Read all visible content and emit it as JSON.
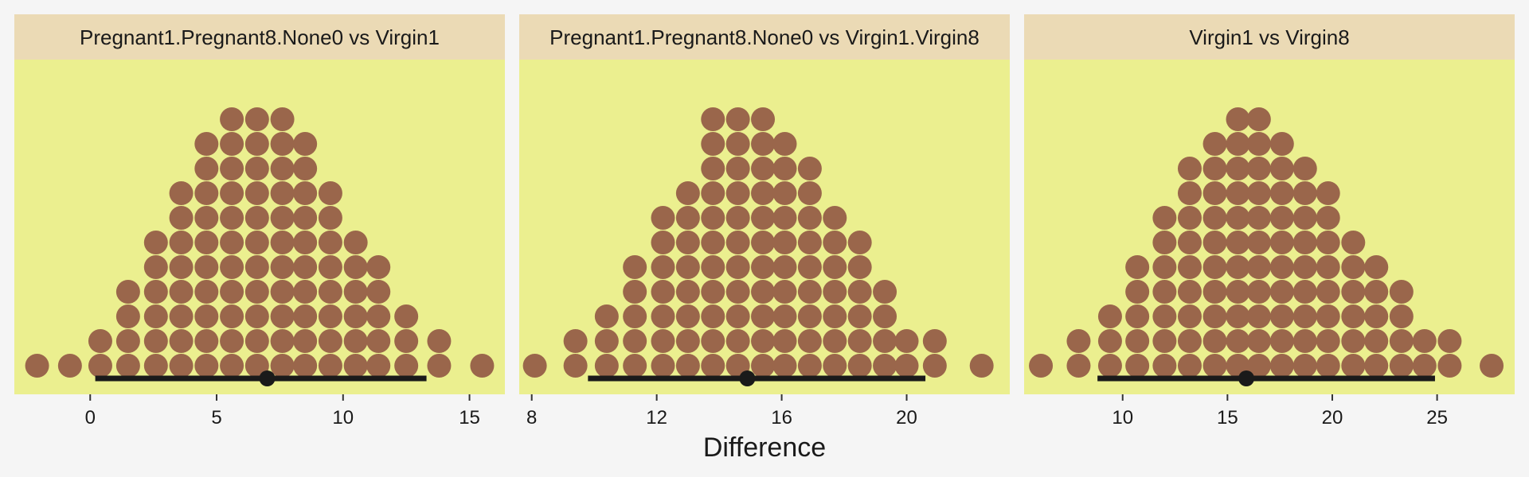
{
  "chart_data": {
    "type": "dotplot",
    "xlabel": "Difference",
    "colors": {
      "panel_background": "#ebef8f",
      "strip_background": "#ebdab5",
      "page_background": "#f5f5f5",
      "dot": "#9a664b",
      "interval": "#1a1a1a"
    },
    "panels": [
      {
        "title": "Pregnant1.Pregnant8.None0 vs Virgin1",
        "xlim": [
          -3,
          16.4
        ],
        "ticks": [
          0,
          5,
          10,
          15
        ],
        "interval": {
          "low": 0.2,
          "high": 13.3,
          "point": 7.0
        },
        "bins": [
          {
            "x": -2.1,
            "n": 1
          },
          {
            "x": -0.8,
            "n": 1
          },
          {
            "x": 0.4,
            "n": 2
          },
          {
            "x": 1.5,
            "n": 4
          },
          {
            "x": 2.6,
            "n": 6
          },
          {
            "x": 3.6,
            "n": 8
          },
          {
            "x": 4.6,
            "n": 10
          },
          {
            "x": 5.6,
            "n": 11
          },
          {
            "x": 6.6,
            "n": 11
          },
          {
            "x": 7.6,
            "n": 11
          },
          {
            "x": 8.5,
            "n": 10
          },
          {
            "x": 9.5,
            "n": 8
          },
          {
            "x": 10.5,
            "n": 6
          },
          {
            "x": 11.4,
            "n": 5
          },
          {
            "x": 12.5,
            "n": 3
          },
          {
            "x": 13.8,
            "n": 2
          },
          {
            "x": 15.5,
            "n": 1
          }
        ]
      },
      {
        "title": "Pregnant1.Pregnant8.None0 vs Virgin1.Virgin8",
        "xlim": [
          7.6,
          23.3
        ],
        "ticks": [
          8,
          12,
          16,
          20
        ],
        "interval": {
          "low": 9.8,
          "high": 20.6,
          "point": 14.9
        },
        "bins": [
          {
            "x": 8.1,
            "n": 1
          },
          {
            "x": 9.4,
            "n": 2
          },
          {
            "x": 10.4,
            "n": 3
          },
          {
            "x": 11.3,
            "n": 5
          },
          {
            "x": 12.2,
            "n": 7
          },
          {
            "x": 13.0,
            "n": 8
          },
          {
            "x": 13.8,
            "n": 11
          },
          {
            "x": 14.6,
            "n": 11
          },
          {
            "x": 15.4,
            "n": 11
          },
          {
            "x": 16.1,
            "n": 10
          },
          {
            "x": 16.9,
            "n": 9
          },
          {
            "x": 17.7,
            "n": 7
          },
          {
            "x": 18.5,
            "n": 6
          },
          {
            "x": 19.3,
            "n": 4
          },
          {
            "x": 20.0,
            "n": 2
          },
          {
            "x": 20.9,
            "n": 2
          },
          {
            "x": 22.4,
            "n": 1
          }
        ]
      },
      {
        "title": "Virgin1 vs Virgin8",
        "xlim": [
          5.3,
          28.7
        ],
        "ticks": [
          10,
          15,
          20,
          25
        ],
        "interval": {
          "low": 8.8,
          "high": 24.9,
          "point": 15.9
        },
        "bins": [
          {
            "x": 6.1,
            "n": 1
          },
          {
            "x": 7.9,
            "n": 2
          },
          {
            "x": 9.4,
            "n": 3
          },
          {
            "x": 10.7,
            "n": 5
          },
          {
            "x": 12.0,
            "n": 7
          },
          {
            "x": 13.2,
            "n": 9
          },
          {
            "x": 14.4,
            "n": 10
          },
          {
            "x": 15.5,
            "n": 11
          },
          {
            "x": 16.5,
            "n": 11
          },
          {
            "x": 17.6,
            "n": 10
          },
          {
            "x": 18.7,
            "n": 9
          },
          {
            "x": 19.8,
            "n": 8
          },
          {
            "x": 21.0,
            "n": 6
          },
          {
            "x": 22.1,
            "n": 5
          },
          {
            "x": 23.3,
            "n": 4
          },
          {
            "x": 24.4,
            "n": 2
          },
          {
            "x": 25.6,
            "n": 2
          },
          {
            "x": 27.6,
            "n": 1
          }
        ]
      }
    ]
  }
}
